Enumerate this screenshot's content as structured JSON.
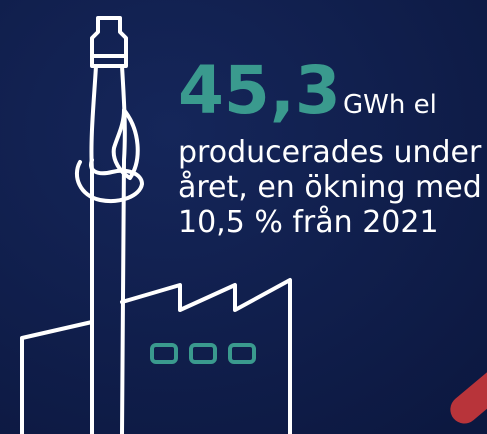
{
  "headline": {
    "value": "45,3",
    "unit": "GWh el"
  },
  "text_lines": [
    "producerades under",
    "året, en ökning med",
    "10,5 % från 2021"
  ]
}
